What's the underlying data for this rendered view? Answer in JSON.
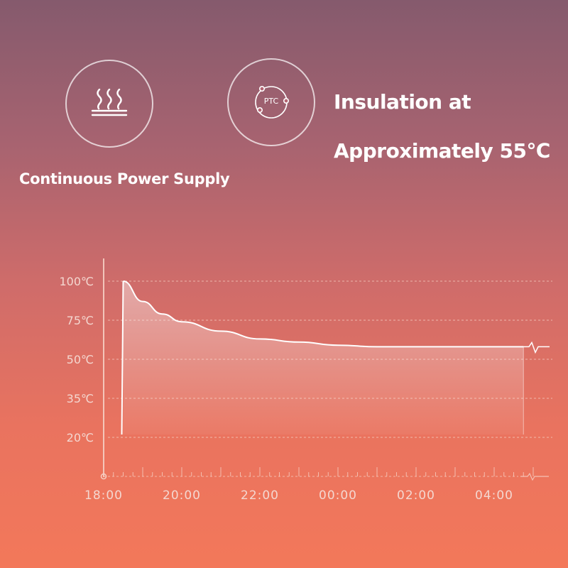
{
  "features": {
    "heat": {
      "icon": "heat-waves-icon",
      "label": "Continuous Power Supply"
    },
    "ptc": {
      "icon": "ptc-chip-icon",
      "badge": "PTC",
      "label_lines": [
        "Insulation at",
        "Approximately 55℃"
      ]
    }
  },
  "colors": {
    "curve": "#ffffff",
    "fill_top": "#ffffff",
    "grid": "#f6cfc3",
    "text": "#f4d7d0"
  },
  "chart_data": {
    "type": "area",
    "title": "",
    "xlabel": "",
    "ylabel": "",
    "x_ticks": [
      "18:00",
      "20:00",
      "22:00",
      "00:00",
      "02:00",
      "04:00"
    ],
    "y_ticks": [
      {
        "label": "100℃",
        "value": 100
      },
      {
        "label": "75℃",
        "value": 75
      },
      {
        "label": "50℃",
        "value": 50
      },
      {
        "label": "35℃",
        "value": 35
      },
      {
        "label": "20℃",
        "value": 20
      }
    ],
    "grid": true,
    "series": [
      {
        "name": "",
        "points": [
          {
            "x": "18:30",
            "y": 100
          },
          {
            "x": "19:00",
            "y": 87
          },
          {
            "x": "19:30",
            "y": 79
          },
          {
            "x": "20:00",
            "y": 74
          },
          {
            "x": "21:00",
            "y": 68
          },
          {
            "x": "22:00",
            "y": 63
          },
          {
            "x": "23:00",
            "y": 61
          },
          {
            "x": "00:00",
            "y": 59
          },
          {
            "x": "01:00",
            "y": 58
          },
          {
            "x": "02:00",
            "y": 58
          },
          {
            "x": "03:00",
            "y": 58
          },
          {
            "x": "04:00",
            "y": 58
          },
          {
            "x": "04:45",
            "y": 58
          }
        ]
      }
    ]
  }
}
